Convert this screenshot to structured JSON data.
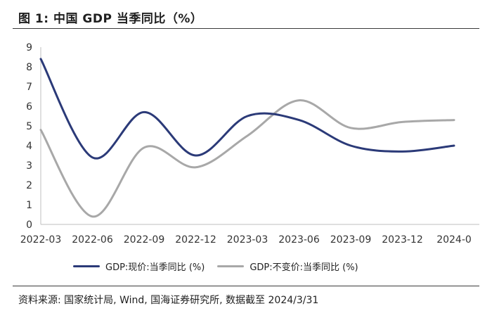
{
  "figure": {
    "title": "图 1:  中国 GDP 当季同比（%）",
    "source": "资料来源: 国家统计局, Wind, 国海证券研究所, 数据截至 2024/3/31"
  },
  "chart_data": {
    "type": "line",
    "title": "中国 GDP 当季同比（%）",
    "xlabel": "",
    "ylabel": "",
    "ylim": [
      0,
      9
    ],
    "yticks": [
      "0",
      "1",
      "2",
      "3",
      "4",
      "5",
      "6",
      "7",
      "8",
      "9"
    ],
    "categories": [
      "2022-03",
      "2022-06",
      "2022-09",
      "2022-12",
      "2023-03",
      "2023-06",
      "2023-09",
      "2023-12",
      "2024-0"
    ],
    "grid": false,
    "legend_position": "bottom",
    "series": [
      {
        "name": "GDP:现价:当季同比  (%)",
        "color": "#2b3a78",
        "values": [
          8.4,
          3.4,
          5.7,
          3.5,
          5.5,
          5.3,
          4.0,
          3.7,
          4.0
        ]
      },
      {
        "name": "GDP:不变价:当季同比 (%)",
        "color": "#a8a8a8",
        "values": [
          4.8,
          0.4,
          3.9,
          2.9,
          4.5,
          6.3,
          4.9,
          5.2,
          5.3
        ]
      }
    ]
  }
}
